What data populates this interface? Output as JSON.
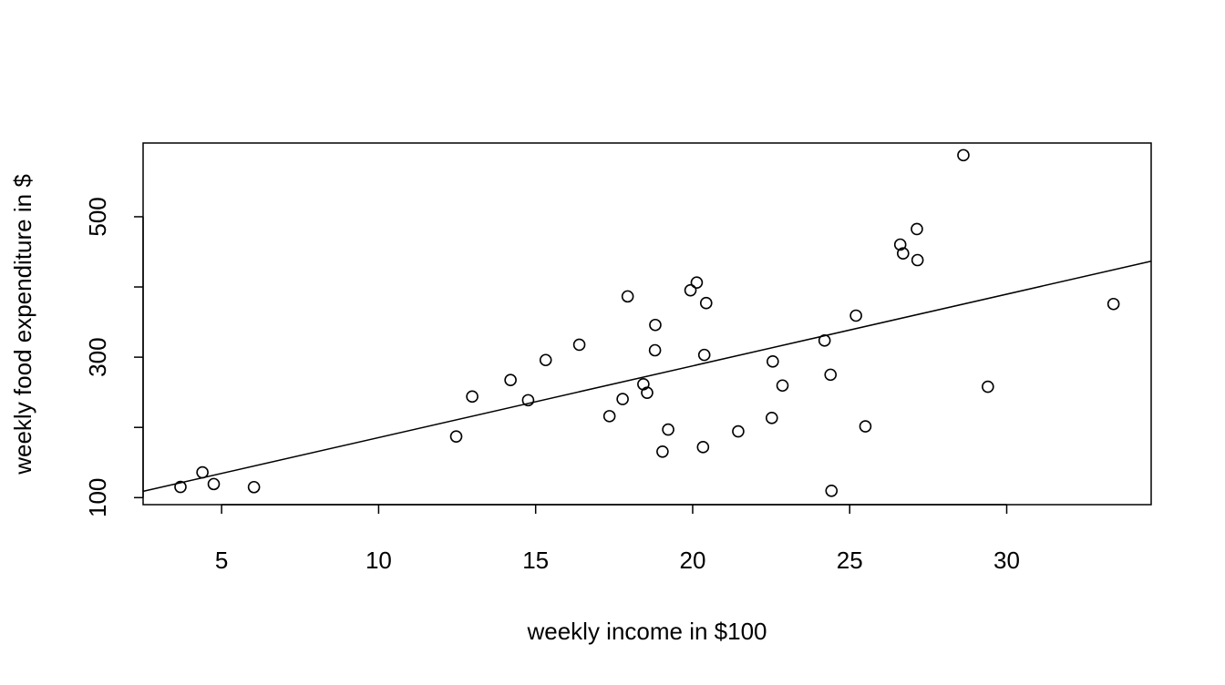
{
  "chart_data": {
    "type": "scatter",
    "title": "",
    "xlabel": "weekly income in $100",
    "ylabel": "weekly food expenditure in $",
    "xlim": [
      2.5,
      34.6
    ],
    "ylim": [
      90,
      605
    ],
    "xticks": [
      5,
      10,
      15,
      20,
      25,
      30
    ],
    "yticks": [
      100,
      200,
      300,
      400,
      500
    ],
    "ytick_labels": [
      "100",
      "",
      "300",
      "",
      "500"
    ],
    "grid": false,
    "regression_line": {
      "intercept": 83.42,
      "slope": 10.21
    },
    "points": [
      {
        "x": 3.69,
        "y": 115.22
      },
      {
        "x": 4.39,
        "y": 135.98
      },
      {
        "x": 4.75,
        "y": 119.34
      },
      {
        "x": 6.03,
        "y": 114.96
      },
      {
        "x": 12.47,
        "y": 187.05
      },
      {
        "x": 12.98,
        "y": 243.92
      },
      {
        "x": 14.2,
        "y": 267.43
      },
      {
        "x": 14.76,
        "y": 238.71
      },
      {
        "x": 15.32,
        "y": 295.94
      },
      {
        "x": 16.39,
        "y": 317.78
      },
      {
        "x": 17.35,
        "y": 216.0
      },
      {
        "x": 17.77,
        "y": 240.35
      },
      {
        "x": 17.93,
        "y": 386.57
      },
      {
        "x": 18.43,
        "y": 261.53
      },
      {
        "x": 18.55,
        "y": 249.34
      },
      {
        "x": 18.8,
        "y": 309.87
      },
      {
        "x": 18.81,
        "y": 345.89
      },
      {
        "x": 19.04,
        "y": 165.54
      },
      {
        "x": 19.22,
        "y": 196.98
      },
      {
        "x": 19.93,
        "y": 395.26
      },
      {
        "x": 20.13,
        "y": 406.34
      },
      {
        "x": 20.33,
        "y": 171.92
      },
      {
        "x": 20.37,
        "y": 303.23
      },
      {
        "x": 20.43,
        "y": 377.04
      },
      {
        "x": 21.45,
        "y": 194.35
      },
      {
        "x": 22.52,
        "y": 213.48
      },
      {
        "x": 22.55,
        "y": 293.87
      },
      {
        "x": 22.86,
        "y": 259.61
      },
      {
        "x": 24.2,
        "y": 323.71
      },
      {
        "x": 24.39,
        "y": 275.02
      },
      {
        "x": 24.42,
        "y": 109.71
      },
      {
        "x": 25.2,
        "y": 359.19
      },
      {
        "x": 25.5,
        "y": 201.51
      },
      {
        "x": 26.61,
        "y": 460.36
      },
      {
        "x": 26.7,
        "y": 447.76
      },
      {
        "x": 27.14,
        "y": 482.55
      },
      {
        "x": 27.16,
        "y": 438.29
      },
      {
        "x": 28.62,
        "y": 587.66
      },
      {
        "x": 29.4,
        "y": 257.95
      },
      {
        "x": 33.4,
        "y": 375.73
      }
    ]
  }
}
